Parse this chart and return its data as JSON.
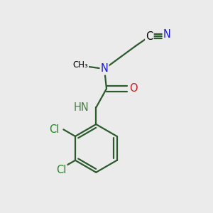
{
  "background_color": "#ebebeb",
  "bond_color": "#2d5a2d",
  "N_color": "#1a1acc",
  "O_color": "#cc1a1a",
  "Cl_color": "#1a8a1a",
  "NH_color": "#4a7a4a",
  "figsize": [
    3.0,
    3.0
  ],
  "dpi": 100,
  "xlim": [
    0,
    10
  ],
  "ylim": [
    0,
    10
  ]
}
